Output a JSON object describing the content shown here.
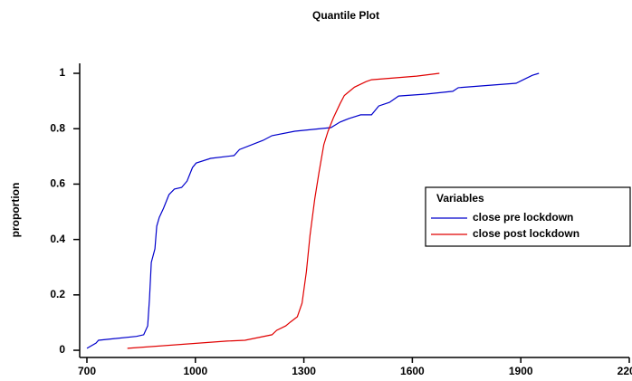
{
  "chart_data": {
    "type": "line",
    "title": "Quantile Plot",
    "y_label": "proportion",
    "legend_title": "Variables",
    "legend": "right",
    "xlim": [
      680,
      2200
    ],
    "xticks": [
      700,
      1000,
      1300,
      1600,
      1900,
      2200
    ],
    "ylim": [
      -0.026,
      1.036
    ],
    "yticks": [
      0,
      0.2,
      0.4,
      0.6,
      0.8,
      1
    ],
    "series": [
      {
        "name": "close pre lockdown",
        "color": "#0000cc",
        "x": [
          700,
          725,
          732,
          837,
          857,
          868,
          873,
          878,
          888,
          893,
          900,
          912,
          927,
          942,
          962,
          977,
          992,
          1002,
          1042,
          1107,
          1122,
          1187,
          1212,
          1275,
          1375,
          1400,
          1425,
          1457,
          1487,
          1507,
          1537,
          1562,
          1637,
          1712,
          1727,
          1887,
          1907,
          1932,
          1950
        ],
        "values": [
          0.007,
          0.026,
          0.036,
          0.05,
          0.056,
          0.088,
          0.186,
          0.317,
          0.366,
          0.448,
          0.48,
          0.513,
          0.562,
          0.582,
          0.588,
          0.611,
          0.66,
          0.676,
          0.693,
          0.703,
          0.725,
          0.758,
          0.775,
          0.791,
          0.804,
          0.824,
          0.837,
          0.85,
          0.85,
          0.882,
          0.895,
          0.918,
          0.925,
          0.935,
          0.948,
          0.964,
          0.977,
          0.993,
          1.0
        ]
      },
      {
        "name": "close post lockdown",
        "color": "#e00000",
        "x": [
          812,
          1087,
          1137,
          1212,
          1225,
          1250,
          1262,
          1282,
          1295,
          1307,
          1317,
          1330,
          1342,
          1355,
          1367,
          1382,
          1400,
          1412,
          1440,
          1472,
          1487,
          1612,
          1675
        ],
        "values": [
          0.007,
          0.033,
          0.036,
          0.056,
          0.072,
          0.088,
          0.101,
          0.121,
          0.17,
          0.284,
          0.415,
          0.546,
          0.644,
          0.742,
          0.791,
          0.84,
          0.89,
          0.92,
          0.95,
          0.97,
          0.977,
          0.99,
          1.0
        ]
      }
    ]
  }
}
